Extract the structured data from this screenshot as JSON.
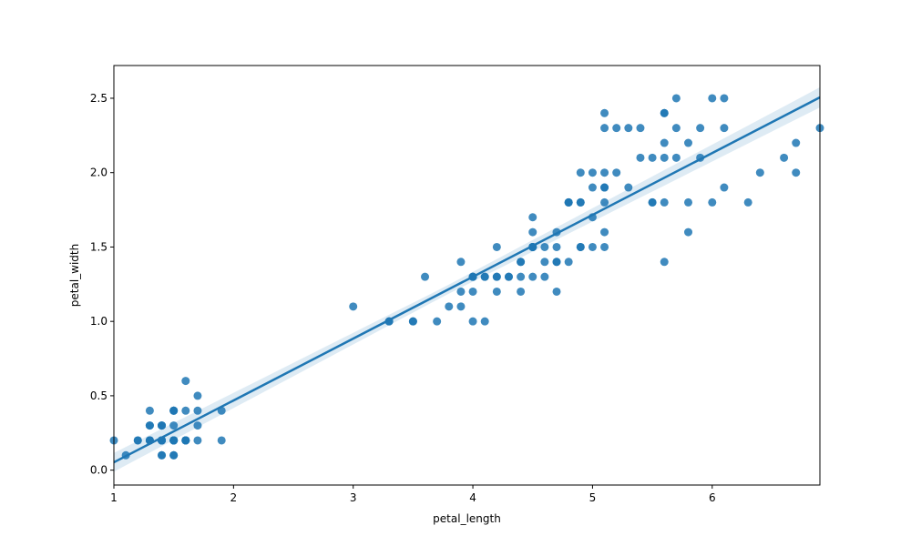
{
  "chart_data": {
    "type": "scatter",
    "title": "",
    "xlabel": "petal_length",
    "ylabel": "petal_width",
    "xlim": [
      1.0,
      6.9
    ],
    "ylim": [
      -0.1,
      2.72
    ],
    "xticks": [
      1,
      2,
      3,
      4,
      5,
      6
    ],
    "yticks": [
      0.0,
      0.5,
      1.0,
      1.5,
      2.0,
      2.5
    ],
    "xtick_labels": [
      "1",
      "2",
      "3",
      "4",
      "5",
      "6"
    ],
    "ytick_labels": [
      "0.0",
      "0.5",
      "1.0",
      "1.5",
      "2.0",
      "2.5"
    ],
    "grid": false,
    "legend": "none",
    "point_color": "#1f77b4",
    "regression": {
      "slope": 0.4158,
      "intercept": -0.3631,
      "x_range": [
        1.0,
        6.9
      ]
    },
    "points": [
      [
        1.4,
        0.2
      ],
      [
        1.4,
        0.2
      ],
      [
        1.3,
        0.2
      ],
      [
        1.5,
        0.2
      ],
      [
        1.4,
        0.2
      ],
      [
        1.7,
        0.4
      ],
      [
        1.4,
        0.3
      ],
      [
        1.5,
        0.2
      ],
      [
        1.4,
        0.2
      ],
      [
        1.5,
        0.1
      ],
      [
        1.5,
        0.2
      ],
      [
        1.6,
        0.2
      ],
      [
        1.4,
        0.1
      ],
      [
        1.1,
        0.1
      ],
      [
        1.2,
        0.2
      ],
      [
        1.5,
        0.4
      ],
      [
        1.3,
        0.4
      ],
      [
        1.4,
        0.3
      ],
      [
        1.7,
        0.3
      ],
      [
        1.5,
        0.3
      ],
      [
        1.7,
        0.2
      ],
      [
        1.5,
        0.4
      ],
      [
        1.0,
        0.2
      ],
      [
        1.7,
        0.5
      ],
      [
        1.9,
        0.2
      ],
      [
        1.6,
        0.2
      ],
      [
        1.6,
        0.4
      ],
      [
        1.5,
        0.2
      ],
      [
        1.4,
        0.2
      ],
      [
        1.6,
        0.2
      ],
      [
        1.6,
        0.2
      ],
      [
        1.5,
        0.4
      ],
      [
        1.5,
        0.1
      ],
      [
        1.4,
        0.2
      ],
      [
        1.5,
        0.2
      ],
      [
        1.2,
        0.2
      ],
      [
        1.3,
        0.2
      ],
      [
        1.4,
        0.1
      ],
      [
        1.3,
        0.2
      ],
      [
        1.5,
        0.2
      ],
      [
        1.3,
        0.3
      ],
      [
        1.3,
        0.3
      ],
      [
        1.3,
        0.2
      ],
      [
        1.6,
        0.6
      ],
      [
        1.9,
        0.4
      ],
      [
        1.4,
        0.3
      ],
      [
        1.6,
        0.2
      ],
      [
        1.4,
        0.2
      ],
      [
        1.5,
        0.2
      ],
      [
        1.4,
        0.2
      ],
      [
        4.7,
        1.4
      ],
      [
        4.5,
        1.5
      ],
      [
        4.9,
        1.5
      ],
      [
        4.0,
        1.3
      ],
      [
        4.6,
        1.5
      ],
      [
        4.5,
        1.3
      ],
      [
        4.7,
        1.6
      ],
      [
        3.3,
        1.0
      ],
      [
        4.6,
        1.3
      ],
      [
        3.9,
        1.4
      ],
      [
        3.5,
        1.0
      ],
      [
        4.2,
        1.5
      ],
      [
        4.0,
        1.0
      ],
      [
        4.7,
        1.4
      ],
      [
        3.6,
        1.3
      ],
      [
        4.4,
        1.4
      ],
      [
        4.5,
        1.5
      ],
      [
        4.1,
        1.0
      ],
      [
        4.5,
        1.5
      ],
      [
        3.9,
        1.1
      ],
      [
        4.8,
        1.8
      ],
      [
        4.0,
        1.3
      ],
      [
        4.9,
        1.5
      ],
      [
        4.7,
        1.2
      ],
      [
        4.3,
        1.3
      ],
      [
        4.4,
        1.4
      ],
      [
        4.8,
        1.4
      ],
      [
        5.0,
        1.7
      ],
      [
        4.5,
        1.5
      ],
      [
        3.5,
        1.0
      ],
      [
        3.8,
        1.1
      ],
      [
        3.7,
        1.0
      ],
      [
        3.9,
        1.2
      ],
      [
        5.1,
        1.6
      ],
      [
        4.5,
        1.5
      ],
      [
        4.5,
        1.6
      ],
      [
        4.7,
        1.5
      ],
      [
        4.4,
        1.3
      ],
      [
        4.1,
        1.3
      ],
      [
        4.0,
        1.3
      ],
      [
        4.4,
        1.2
      ],
      [
        4.6,
        1.4
      ],
      [
        4.0,
        1.2
      ],
      [
        3.3,
        1.0
      ],
      [
        4.2,
        1.3
      ],
      [
        4.2,
        1.2
      ],
      [
        4.2,
        1.3
      ],
      [
        4.3,
        1.3
      ],
      [
        3.0,
        1.1
      ],
      [
        4.1,
        1.3
      ],
      [
        6.0,
        2.5
      ],
      [
        5.1,
        1.9
      ],
      [
        5.9,
        2.1
      ],
      [
        5.6,
        1.8
      ],
      [
        5.8,
        2.2
      ],
      [
        6.6,
        2.1
      ],
      [
        4.5,
        1.7
      ],
      [
        6.3,
        1.8
      ],
      [
        5.8,
        1.8
      ],
      [
        6.1,
        2.5
      ],
      [
        5.1,
        2.0
      ],
      [
        5.3,
        1.9
      ],
      [
        5.5,
        2.1
      ],
      [
        5.0,
        2.0
      ],
      [
        5.1,
        2.4
      ],
      [
        5.3,
        2.3
      ],
      [
        5.5,
        1.8
      ],
      [
        6.7,
        2.2
      ],
      [
        6.9,
        2.3
      ],
      [
        5.0,
        1.5
      ],
      [
        5.7,
        2.3
      ],
      [
        4.9,
        2.0
      ],
      [
        6.7,
        2.0
      ],
      [
        4.9,
        1.8
      ],
      [
        5.7,
        2.1
      ],
      [
        6.0,
        1.8
      ],
      [
        4.8,
        1.8
      ],
      [
        4.9,
        1.8
      ],
      [
        5.6,
        2.1
      ],
      [
        5.8,
        1.6
      ],
      [
        6.1,
        1.9
      ],
      [
        6.4,
        2.0
      ],
      [
        5.6,
        2.2
      ],
      [
        5.1,
        1.5
      ],
      [
        5.6,
        1.4
      ],
      [
        6.1,
        2.3
      ],
      [
        5.6,
        2.4
      ],
      [
        5.5,
        1.8
      ],
      [
        4.8,
        1.8
      ],
      [
        5.4,
        2.1
      ],
      [
        5.6,
        2.4
      ],
      [
        5.1,
        2.3
      ],
      [
        5.1,
        1.9
      ],
      [
        5.9,
        2.3
      ],
      [
        5.7,
        2.5
      ],
      [
        5.2,
        2.3
      ],
      [
        5.0,
        1.9
      ],
      [
        5.2,
        2.0
      ],
      [
        5.4,
        2.3
      ],
      [
        5.1,
        1.8
      ]
    ]
  }
}
